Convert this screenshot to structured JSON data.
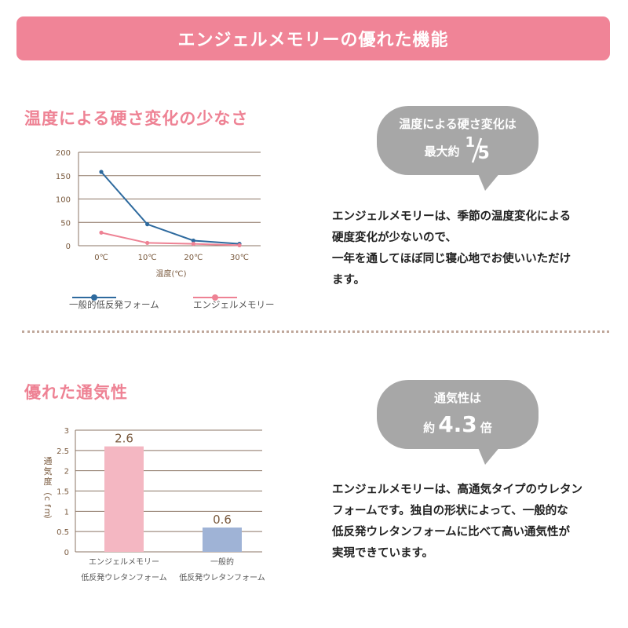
{
  "banner": {
    "title": "エンジェルメモリーの優れた機能"
  },
  "colors": {
    "pink": "#ee8294",
    "blue": "#2e6a9e",
    "lightpink": "#f4b7c2",
    "lightblue": "#9fb3d6",
    "gray": "#a7a7a7"
  },
  "section1": {
    "title": "温度による硬さ変化の少なさ",
    "bubble": {
      "line1": "温度による硬さ変化は",
      "prefix": "最大約",
      "frac_num": "1",
      "frac_den": "5"
    },
    "description": [
      "エンジェルメモリーは、季節の温度変化による",
      "硬度変化が少ないので、",
      "一年を通してほぼ同じ寝心地でお使いいただけ",
      "ます。"
    ]
  },
  "section2": {
    "title": "優れた通気性",
    "bubble": {
      "line1": "通気性は",
      "prefix": "約",
      "value": "4.3",
      "suffix": "倍"
    },
    "description": [
      "エンジェルメモリーは、高通気タイプのウレタン",
      "フォームです。独自の形状によって、一般的な",
      "低反発ウレタンフォームに比べて高い通気性が",
      "実現できています。"
    ]
  },
  "chart_data": [
    {
      "type": "line",
      "title": "温度による硬さ変化の少なさ",
      "xlabel": "温度(℃)",
      "ylabel": "",
      "x": [
        "0℃",
        "10℃",
        "20℃",
        "30℃"
      ],
      "yticks": [
        "0",
        "50",
        "100",
        "150",
        "200"
      ],
      "ylim": [
        0,
        200
      ],
      "grid": true,
      "legend": "bottom",
      "series": [
        {
          "name": "一般的低反発フォーム",
          "color": "#2e6a9e",
          "values": [
            158,
            46,
            11,
            4
          ]
        },
        {
          "name": "エンジェルメモリー",
          "color": "#ee8294",
          "values": [
            28,
            6,
            4,
            1
          ]
        }
      ]
    },
    {
      "type": "bar",
      "title": "優れた通気性",
      "ylabel": "通気度（cfm）",
      "yticks": [
        "0",
        "0.5",
        "1",
        "1.5",
        "2",
        "2.5",
        "3"
      ],
      "ylim": [
        0,
        3
      ],
      "grid": true,
      "categories": [
        {
          "line1": "エンジェルメモリー",
          "line2": "低反発ウレタンフォーム"
        },
        {
          "line1": "一般的",
          "line2": "低反発ウレタンフォーム"
        }
      ],
      "values": [
        2.6,
        0.6
      ],
      "labels": [
        "2.6",
        "0.6"
      ],
      "colors": [
        "#f4b7c2",
        "#9fb3d6"
      ]
    }
  ]
}
